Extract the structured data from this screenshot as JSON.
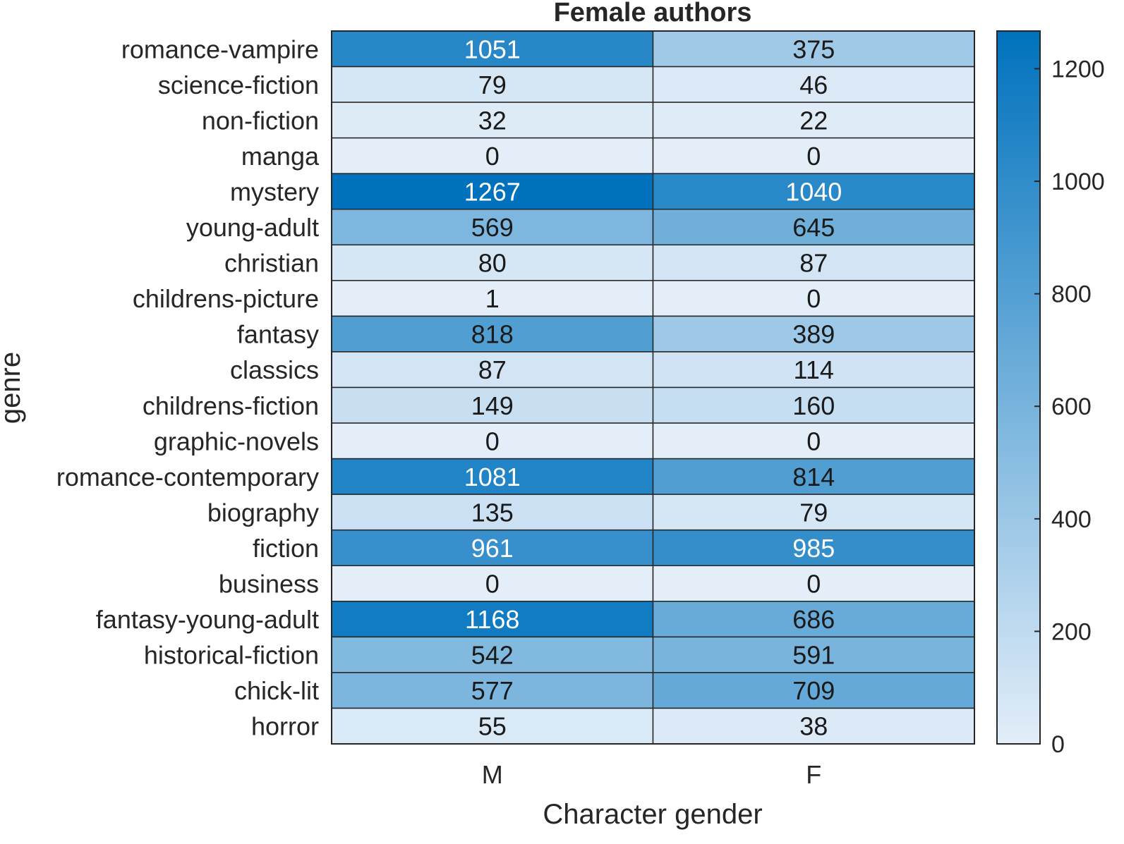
{
  "chart_data": {
    "type": "heatmap",
    "title": "Female authors",
    "xlabel": "Character gender",
    "ylabel": "genre",
    "columns": [
      "M",
      "F"
    ],
    "rows": [
      "romance-vampire",
      "science-fiction",
      "non-fiction",
      "manga",
      "mystery",
      "young-adult",
      "christian",
      "childrens-picture",
      "fantasy",
      "classics",
      "childrens-fiction",
      "graphic-novels",
      "romance-contemporary",
      "biography",
      "fiction",
      "business",
      "fantasy-young-adult",
      "historical-fiction",
      "chick-lit",
      "horror"
    ],
    "values": [
      [
        1051,
        375
      ],
      [
        79,
        46
      ],
      [
        32,
        22
      ],
      [
        0,
        0
      ],
      [
        1267,
        1040
      ],
      [
        569,
        645
      ],
      [
        80,
        87
      ],
      [
        1,
        0
      ],
      [
        818,
        389
      ],
      [
        87,
        114
      ],
      [
        149,
        160
      ],
      [
        0,
        0
      ],
      [
        1081,
        814
      ],
      [
        135,
        79
      ],
      [
        961,
        985
      ],
      [
        0,
        0
      ],
      [
        1168,
        686
      ],
      [
        542,
        591
      ],
      [
        577,
        709
      ],
      [
        55,
        38
      ]
    ],
    "colorbar": {
      "range": [
        0,
        1267
      ],
      "ticks": [
        0,
        200,
        400,
        600,
        800,
        1000,
        1200
      ],
      "color_low": "#e3eef9",
      "color_high": "#0072bd"
    },
    "grid": true,
    "legend": "colorbar-right"
  }
}
